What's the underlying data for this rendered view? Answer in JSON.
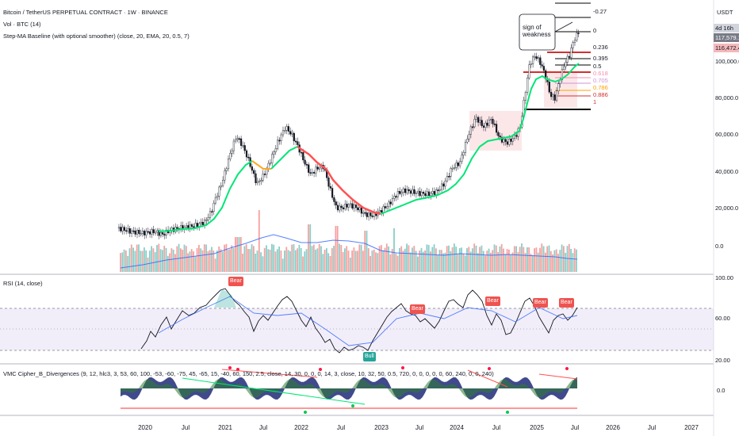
{
  "header": {
    "symbol_title": "Bitcoin / TetherUS PERPETUAL CONTRACT · 1W · BINANCE",
    "vol_label": "Vol · BTC (14)",
    "step_ma_label": "Step-MA Baseline  (with optional smoother) (close, 20, EMA, 20, 0.5, 7)"
  },
  "price_axis": {
    "currency": "USDT",
    "ticks": [
      "100,000.0",
      "80,000.0",
      "60,000.0",
      "40,000.0",
      "20,000.0",
      "0.0"
    ],
    "countdown": "4d 16h",
    "price_label_1": "117,579.1",
    "price_label_2": "116,472.4"
  },
  "fib_labels": [
    "-0.27",
    "0",
    "0.236",
    "0.395",
    "0.5",
    "0.618",
    "0.705",
    "0.786",
    "0.886",
    "1"
  ],
  "annotation": {
    "text": "sign of weakness"
  },
  "rsi": {
    "title": "RSI (14, close)",
    "ticks": [
      "100.00",
      "60.00",
      "20.00"
    ],
    "bear_label": "Bear",
    "bull_label": "Bull"
  },
  "vmc": {
    "title": "VMC Cipher_B_Divergences (9, 12, hlc3, 3, 53, 60, 100, -53, -60, -75, 45, -65, 15, -40, 60, 150, 2.5, close, 14, 30, 0, 0, 0, 14, 3, close, 10, 32, 50, 0.5, 720, 0, 0, 0, 0, 0, 60, 240, 0, 0, 240)",
    "tick": "0.0"
  },
  "time_axis": [
    "2020",
    "Jul",
    "2021",
    "Jul",
    "2022",
    "Jul",
    "2023",
    "Jul",
    "2024",
    "Jul",
    "2025",
    "Jul",
    "2026",
    "Jul",
    "2027"
  ],
  "colors": {
    "up": "#26a69a",
    "down": "#ef5350",
    "stepma_up": "#00e676",
    "stepma_down": "#ff5252",
    "rsi_band": "#7e57c2",
    "vmc_wave": "#1e2a78"
  }
}
